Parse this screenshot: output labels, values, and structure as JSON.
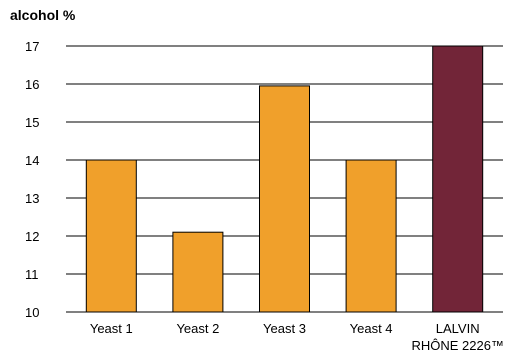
{
  "chart_data": {
    "type": "bar",
    "ylabel": "alcohol %",
    "xlabel": "",
    "title": "",
    "categories": [
      "Yeast 1",
      "Yeast 2",
      "Yeast 3",
      "Yeast 4",
      "LALVIN RHÔNE 2226™"
    ],
    "category_label_lines": [
      [
        "Yeast 1"
      ],
      [
        "Yeast 2"
      ],
      [
        "Yeast 3"
      ],
      [
        "Yeast 4"
      ],
      [
        "LALVIN",
        "RHÔNE 2226™"
      ]
    ],
    "values": [
      14,
      12.1,
      15.95,
      14,
      17
    ],
    "ylim": [
      10,
      17
    ],
    "yticks": [
      10,
      11,
      12,
      13,
      14,
      15,
      16,
      17
    ],
    "grid": "horizontal",
    "colors": [
      "#F0A02B",
      "#F0A02B",
      "#F0A02B",
      "#F0A02B",
      "#722538"
    ],
    "grid_color": "#000000"
  }
}
